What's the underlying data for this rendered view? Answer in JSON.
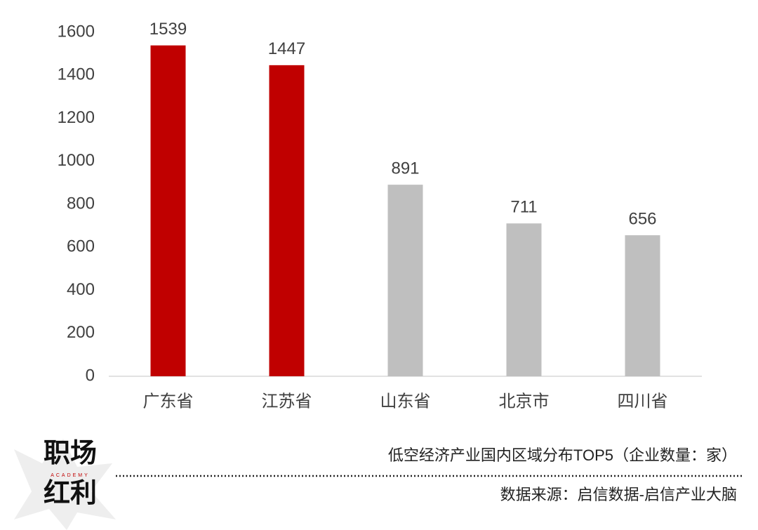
{
  "chart_data": {
    "type": "bar",
    "title": "低空经济产业国内区域分布TOP5（企业数量：家）",
    "source": "数据来源：启信数据-启信产业大脑",
    "categories": [
      "广东省",
      "江苏省",
      "山东省",
      "北京市",
      "四川省"
    ],
    "values": [
      1539,
      1447,
      891,
      711,
      656
    ],
    "colors": [
      "#c00000",
      "#c00000",
      "#bfbfbf",
      "#bfbfbf",
      "#bfbfbf"
    ],
    "ylim": [
      0,
      1600
    ],
    "yticks": [
      0,
      200,
      400,
      600,
      800,
      1000,
      1200,
      1400,
      1600
    ],
    "grid": false
  },
  "brand": {
    "line1": "职场",
    "tag": "ACADEMY",
    "line2": "红利"
  }
}
